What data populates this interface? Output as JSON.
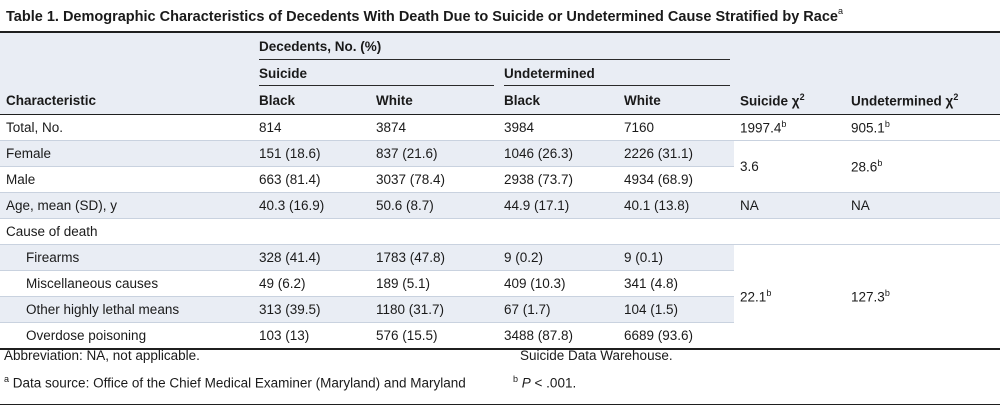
{
  "title": {
    "text": "Table 1. Demographic Characteristics of Decedents With Death Due to Suicide or Undetermined Cause Stratified by Race",
    "sup": "a"
  },
  "header": {
    "decedents": "Decedents, No. (%)",
    "suicide": "Suicide",
    "undetermined": "Undetermined",
    "characteristic": "Characteristic",
    "black1": "Black",
    "white1": "White",
    "black2": "Black",
    "white2": "White",
    "suicide_chi": "Suicide χ",
    "undetermined_chi": "Undetermined χ",
    "chi_sup": "2"
  },
  "rows": {
    "total": {
      "label": "Total, No.",
      "v": [
        "814",
        "3874",
        "3984",
        "7160"
      ],
      "c1": "1997.4",
      "c1sup": "b",
      "c2": "905.1",
      "c2sup": "b"
    },
    "female": {
      "label": "Female",
      "v": [
        "151 (18.6)",
        "837 (21.6)",
        "1046 (26.3)",
        "2226 (31.1)"
      ]
    },
    "male": {
      "label": "Male",
      "v": [
        "663 (81.4)",
        "3037 (78.4)",
        "2938 (73.7)",
        "4934 (68.9)"
      ]
    },
    "sex_chi": {
      "c1": "3.6",
      "c2": "28.6",
      "c2sup": "b"
    },
    "age": {
      "label": "Age, mean (SD), y",
      "v": [
        "40.3 (16.9)",
        "50.6 (8.7)",
        "44.9 (17.1)",
        "40.1 (13.8)"
      ],
      "c1": "NA",
      "c2": "NA"
    },
    "cause": {
      "label": "Cause of death"
    },
    "firearms": {
      "label": "Firearms",
      "v": [
        "328 (41.4)",
        "1783 (47.8)",
        "9 (0.2)",
        "9 (0.1)"
      ]
    },
    "misc": {
      "label": "Miscellaneous causes",
      "v": [
        "49 (6.2)",
        "189 (5.1)",
        "409 (10.3)",
        "341 (4.8)"
      ]
    },
    "other": {
      "label": "Other highly lethal means",
      "v": [
        "313 (39.5)",
        "1180 (31.7)",
        "67 (1.7)",
        "104 (1.5)"
      ]
    },
    "overdose": {
      "label": "Overdose poisoning",
      "v": [
        "103 (13)",
        "576 (15.5)",
        "3488 (87.8)",
        "6689 (93.6)"
      ]
    },
    "cause_chi": {
      "c1": "22.1",
      "c1sup": "b",
      "c2": "127.3",
      "c2sup": "b"
    }
  },
  "footnotes": {
    "abbrev": "Abbreviation: NA, not applicable.",
    "a_sup": "a",
    "a_text": "Data source: Office of the Chief Medical Examiner (Maryland) and Maryland",
    "a_cont": "Suicide Data Warehouse.",
    "b_sup": "b",
    "b_p": "P",
    "b_text": " < .001."
  }
}
